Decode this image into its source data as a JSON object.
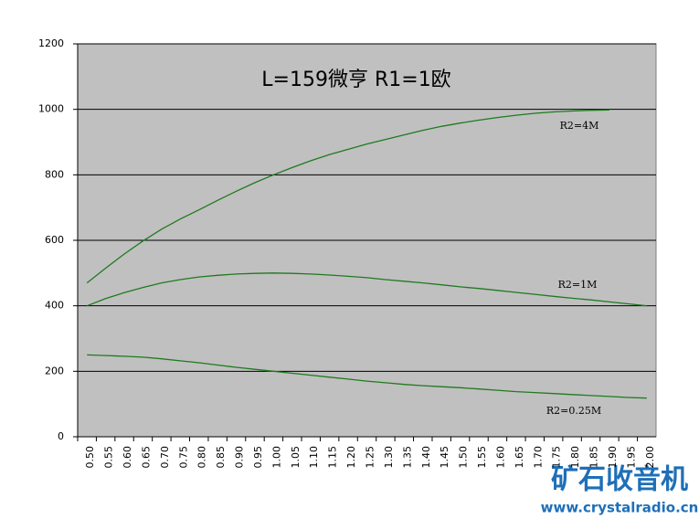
{
  "chart_data": {
    "type": "line",
    "title": "L=159微亨  R1=1欧",
    "categories": [
      "0.50",
      "0.55",
      "0.60",
      "0.65",
      "0.70",
      "0.75",
      "0.80",
      "0.85",
      "0.90",
      "0.95",
      "1.00",
      "1.05",
      "1.10",
      "1.15",
      "1.20",
      "1.25",
      "1.30",
      "1.35",
      "1.40",
      "1.45",
      "1.50",
      "1.55",
      "1.60",
      "1.65",
      "1.70",
      "1.75",
      "1.80",
      "1.85",
      "1.90",
      "1.95",
      "2.00"
    ],
    "series": [
      {
        "name": "R2=4M",
        "color": "#1f7a1f",
        "values": [
          470,
          515,
          558,
          598,
          634,
          665,
          693,
          722,
          750,
          776,
          800,
          822,
          843,
          862,
          878,
          894,
          908,
          922,
          936,
          948,
          958,
          967,
          975,
          982,
          988,
          992,
          995,
          997,
          998,
          null,
          null
        ]
      },
      {
        "name": "R2=1M",
        "color": "#1f7a1f",
        "values": [
          400,
          422,
          440,
          456,
          470,
          480,
          488,
          493,
          497,
          499,
          500,
          499,
          497,
          494,
          490,
          486,
          480,
          475,
          470,
          464,
          458,
          453,
          447,
          441,
          435,
          429,
          423,
          418,
          412,
          406,
          400
        ]
      },
      {
        "name": "R2=0.25M",
        "color": "#1f7a1f",
        "values": [
          250,
          248,
          246,
          243,
          238,
          232,
          226,
          219,
          212,
          206,
          200,
          194,
          188,
          182,
          176,
          170,
          165,
          160,
          156,
          153,
          150,
          146,
          142,
          138,
          135,
          132,
          129,
          126,
          123,
          120,
          118
        ]
      }
    ],
    "ylim": [
      0,
      1200
    ],
    "yticks": [
      0,
      200,
      400,
      600,
      800,
      1000,
      1200
    ],
    "grid": true,
    "background": "#c0c0c0"
  },
  "watermark": {
    "brand": "矿石收音机",
    "url": "www.crystalradio.cn"
  }
}
